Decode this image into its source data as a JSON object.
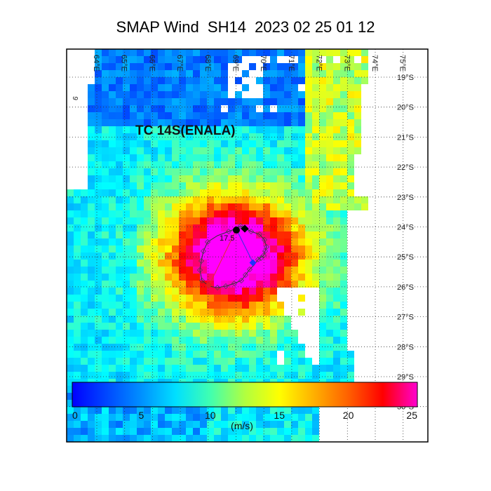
{
  "title": "SMAP Wind  SH14  2023 02 25 01 12",
  "storm_label": "TC 14S(ENALA)",
  "contour_label": "17.5",
  "longitude_labels": [
    "64°E",
    "65°E",
    "66°E",
    "67°E",
    "68°E",
    "69°E",
    "70°E",
    "71°E",
    "72°E",
    "73°E",
    "74°E",
    "75°E"
  ],
  "latitude_labels": [
    "19°S",
    "20°S",
    "21°S",
    "22°S",
    "23°S",
    "24°S",
    "25°S",
    "26°S",
    "27°S",
    "28°S",
    "29°S",
    "30°S"
  ],
  "colorbar": {
    "ticks": [
      "0",
      "5",
      "10",
      "15",
      "20",
      "25"
    ],
    "unit": "(m/s)",
    "range": [
      0,
      25
    ],
    "colors": [
      "#0000ff",
      "#0040ff",
      "#0080ff",
      "#00c0ff",
      "#00ffff",
      "#40ffc0",
      "#80ff80",
      "#c0ff40",
      "#ffff00",
      "#ffc000",
      "#ff8000",
      "#ff4000",
      "#ff0000",
      "#ff0080",
      "#ff00ff"
    ]
  },
  "markers": {
    "center_color": "#000000",
    "radius_point_colors": [
      "#ff2020",
      "#2030ff"
    ]
  },
  "colors": {
    "land_gap": "#ffffff",
    "grid": "#333333",
    "frame": "#000000"
  }
}
